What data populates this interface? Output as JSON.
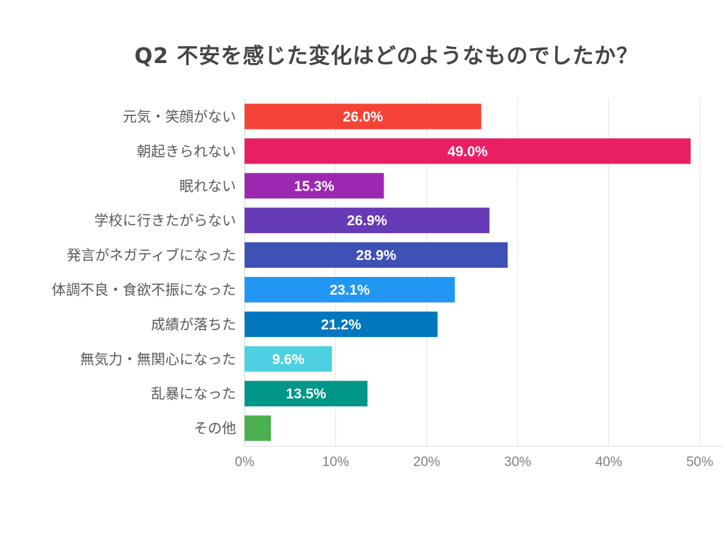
{
  "chart_data": {
    "type": "bar",
    "orientation": "horizontal",
    "title": "Q2 不安を感じた変化はどのようなものでしたか？",
    "xlabel": "",
    "ylabel": "",
    "xlim": [
      0,
      50
    ],
    "grid": true,
    "x_ticks": [
      "0%",
      "10%",
      "20%",
      "30%",
      "40%",
      "50%"
    ],
    "x_tick_values": [
      0,
      10,
      20,
      30,
      40,
      50
    ],
    "categories": [
      "元気・笑顔がない",
      "朝起きられない",
      "眠れない",
      "学校に行きたがらない",
      "発言がネガティブになった",
      "体調不良・食欲不振になった",
      "成績が落ちた",
      "無気力・無関心になった",
      "乱暴になった",
      "その他"
    ],
    "values": [
      26.0,
      49.0,
      15.3,
      26.9,
      28.9,
      23.1,
      21.2,
      9.6,
      13.5,
      2.9
    ],
    "data_labels": [
      "26.0%",
      "49.0%",
      "15.3%",
      "26.9%",
      "28.9%",
      "23.1%",
      "21.2%",
      "9.6%",
      "13.5%",
      ""
    ],
    "colors": [
      "#f44336",
      "#e91e63",
      "#9c27b0",
      "#673ab7",
      "#3f51b5",
      "#2196f3",
      "#0277bd",
      "#4dd0e1",
      "#009688",
      "#4caf50"
    ]
  }
}
